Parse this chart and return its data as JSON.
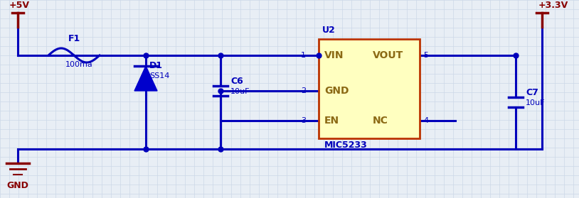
{
  "bg_color": "#e8eef5",
  "grid_color": "#ccd8e8",
  "wire_color": "#0000bb",
  "power_color": "#880000",
  "ic_fill": "#ffffc0",
  "ic_border": "#bb3300",
  "diode_fill": "#0000cc",
  "vplus_label": "+5V",
  "vout_label": "+3.3V",
  "gnd_label": "GND",
  "fuse_label": "F1",
  "fuse_val": "100ma",
  "diode_label": "D1",
  "diode_val": "SS14",
  "cap1_label": "C6",
  "cap1_val": "10uF",
  "cap2_label": "C7",
  "cap2_val": "10uF",
  "ic_name": "U2",
  "ic_model": "MIC5233",
  "ic_pin1": "VIN",
  "ic_pin2": "GND",
  "ic_pin3": "EN",
  "ic_pin5": "VOUT",
  "ic_pin4": "NC",
  "pin_num1": "1",
  "pin_num2": "2",
  "pin_num3": "3",
  "pin_num4": "4",
  "pin_num5": "5"
}
